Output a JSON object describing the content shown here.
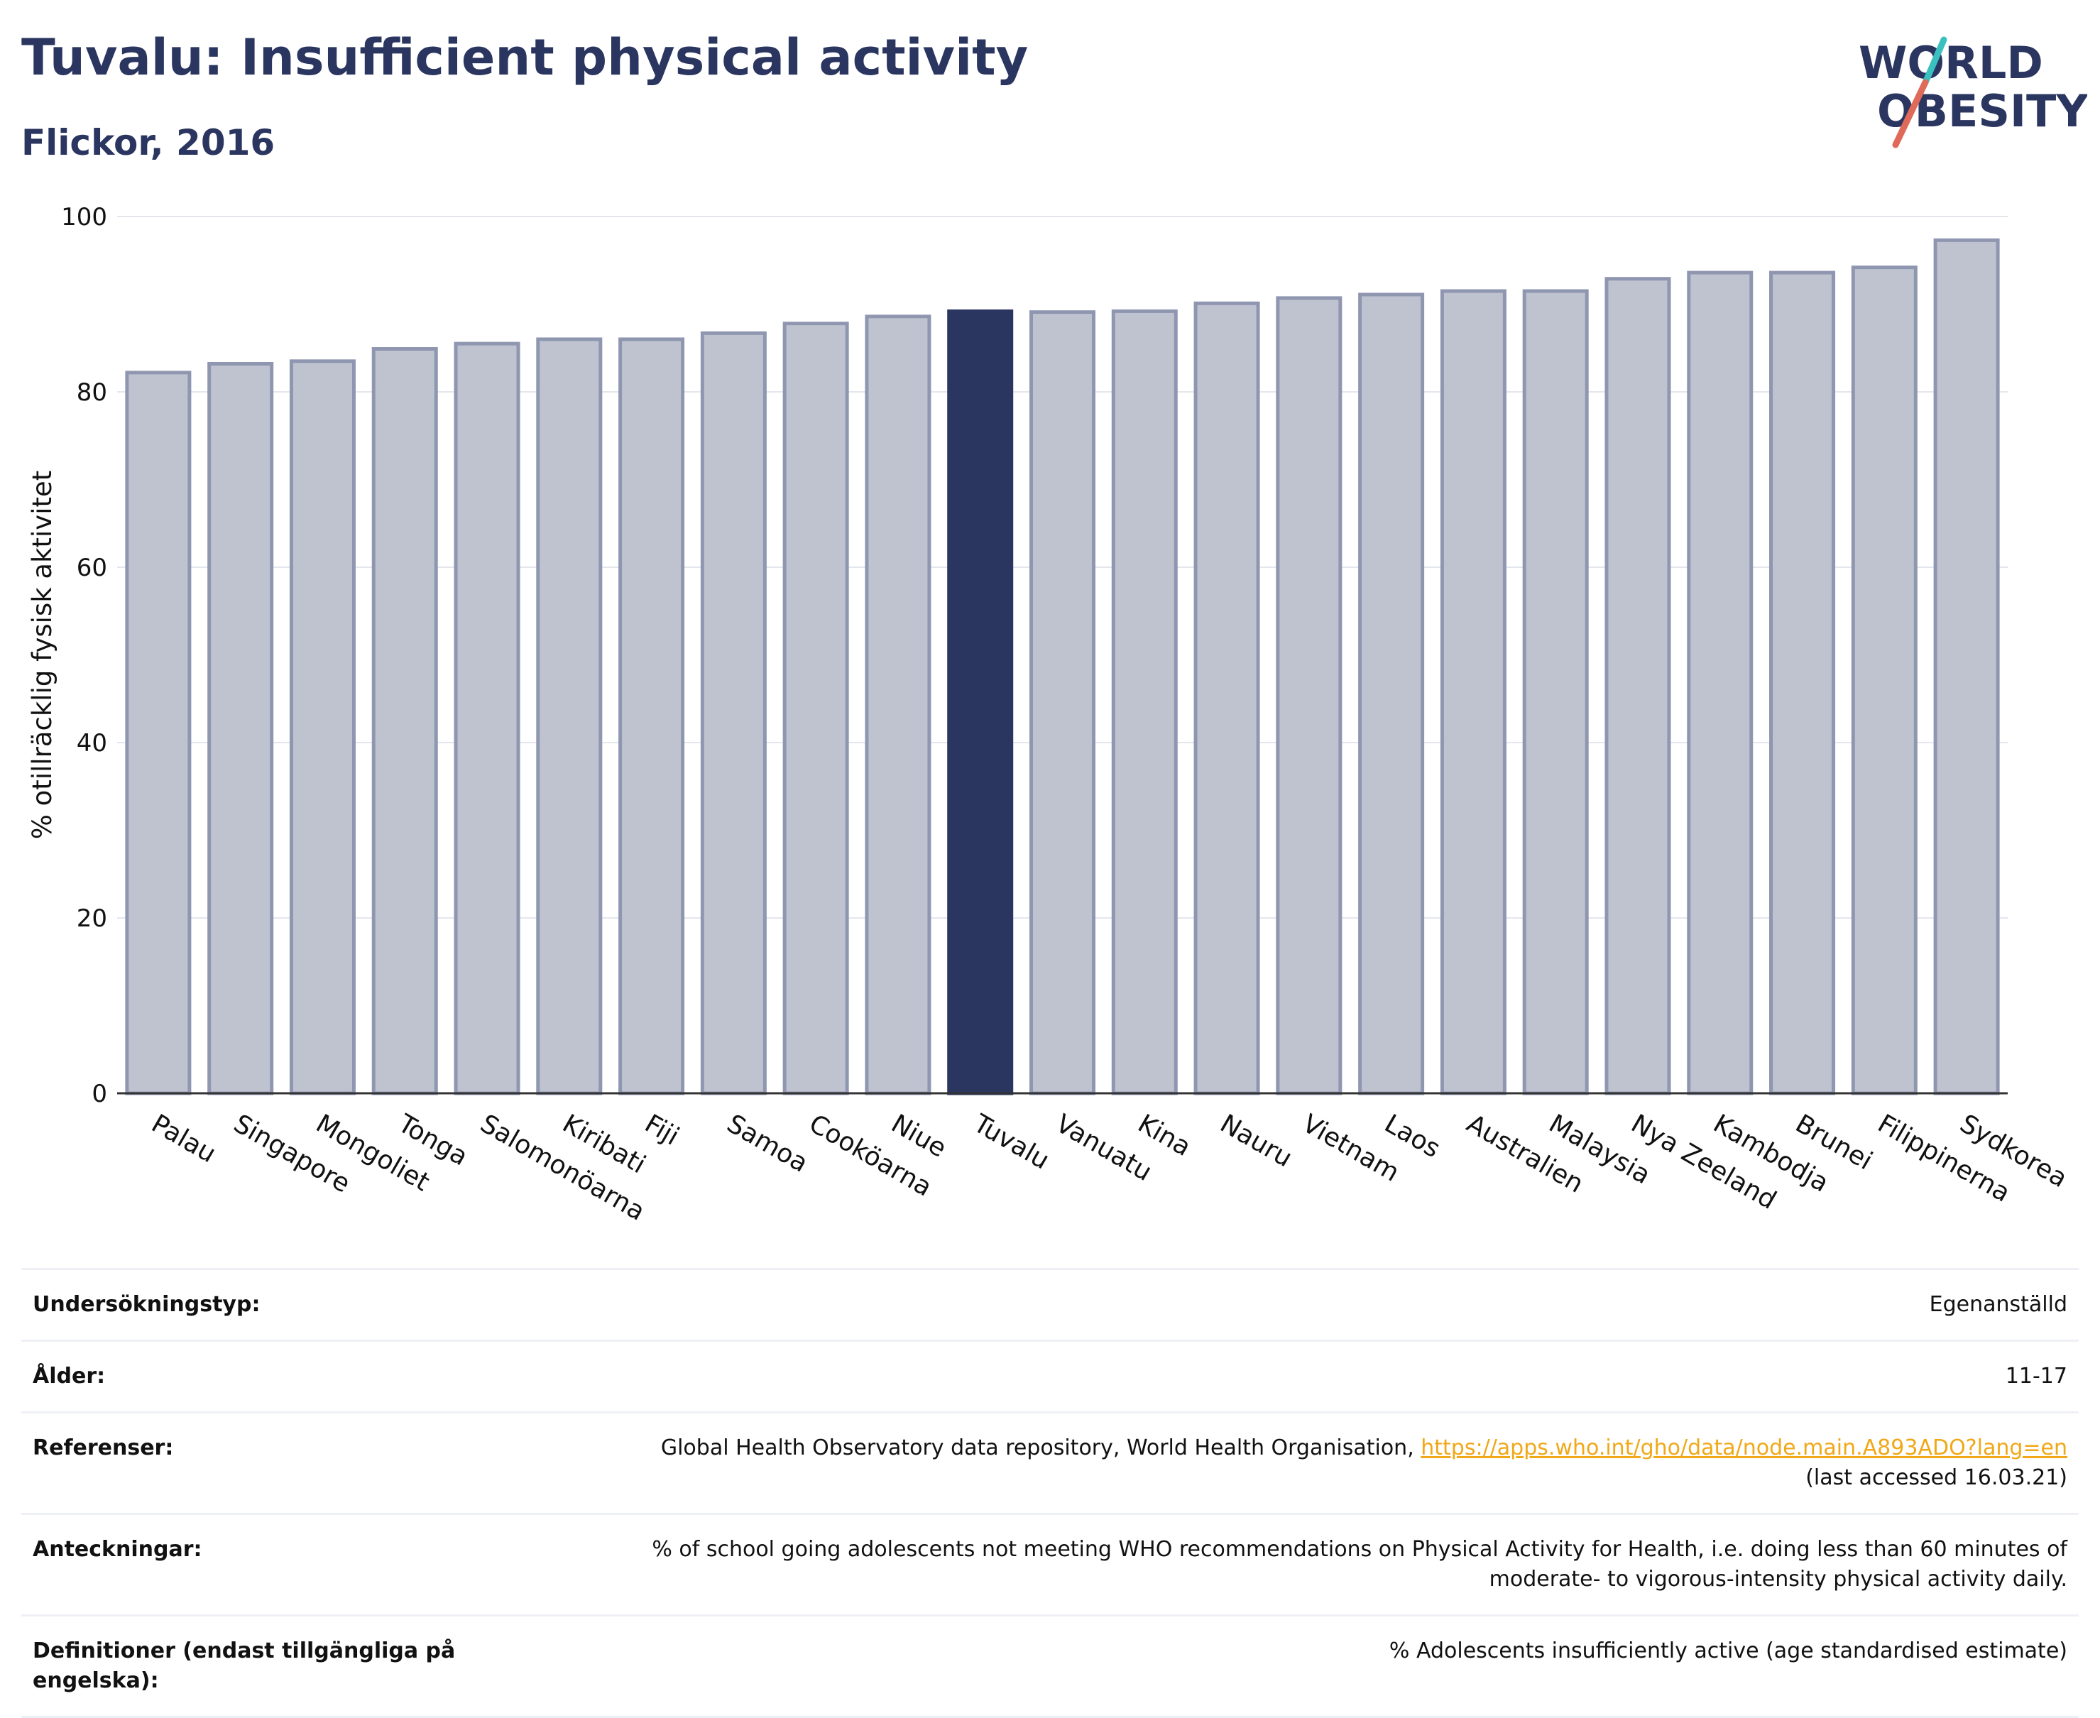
{
  "header": {
    "title": "Tuvalu: Insufficient physical activity",
    "subtitle": "Flickor, 2016"
  },
  "logo": {
    "line1": "WORLD",
    "line2": "OBESITY",
    "colors": {
      "text": "#2a3560",
      "slash_teal": "#3bbfbf",
      "slash_red": "#e06a5a"
    }
  },
  "chart_data": {
    "type": "bar",
    "categories": [
      "Palau",
      "Singapore",
      "Mongoliet",
      "Tonga",
      "Salomonöarna",
      "Kiribati",
      "Fiji",
      "Samoa",
      "Cooköarna",
      "Niue",
      "Tuvalu",
      "Vanuatu",
      "Kina",
      "Nauru",
      "Vietnam",
      "Laos",
      "Australien",
      "Malaysia",
      "Nya Zeeland",
      "Kambodja",
      "Brunei",
      "Filippinerna",
      "Sydkorea"
    ],
    "values": [
      82.2,
      83.2,
      83.5,
      84.9,
      85.5,
      86.0,
      86.0,
      86.7,
      87.8,
      88.6,
      89.2,
      89.1,
      89.2,
      90.1,
      90.7,
      91.1,
      91.5,
      91.5,
      92.9,
      93.6,
      93.6,
      94.2,
      97.3
    ],
    "highlight": "Tuvalu",
    "xlabel": "",
    "ylabel": "% otillräcklig fysisk aktivitet",
    "ylim": [
      0,
      100
    ],
    "yticks": [
      0,
      20,
      40,
      60,
      80,
      100
    ],
    "grid": true,
    "colors": {
      "bar": "#bfc3d0",
      "bar_edge": "#8f96b0",
      "highlight": "#2a3560",
      "grid": "#e4e6ee"
    }
  },
  "info": {
    "rows": [
      {
        "label": "Undersökningstyp:",
        "value": "Egenanställd"
      },
      {
        "label": "Ålder:",
        "value": "11-17"
      },
      {
        "label": "Referenser:",
        "value_prefix": "Global Health Observatory data repository, World Health Organisation, ",
        "link": "https://apps.who.int/gho/data/node.main.A893ADO?lang=en",
        "value_suffix": "(last accessed 16.03.21)"
      },
      {
        "label": "Anteckningar:",
        "value_line1": "% of school going adolescents not meeting WHO recommendations on Physical Activity for Health, i.e. doing less than 60 minutes of",
        "value_line2": "moderate- to vigorous-intensity physical activity daily."
      },
      {
        "label": "Definitioner (endast tillgängliga på engelska):",
        "value": "% Adolescents insufficiently active (age standardised estimate)"
      }
    ]
  }
}
